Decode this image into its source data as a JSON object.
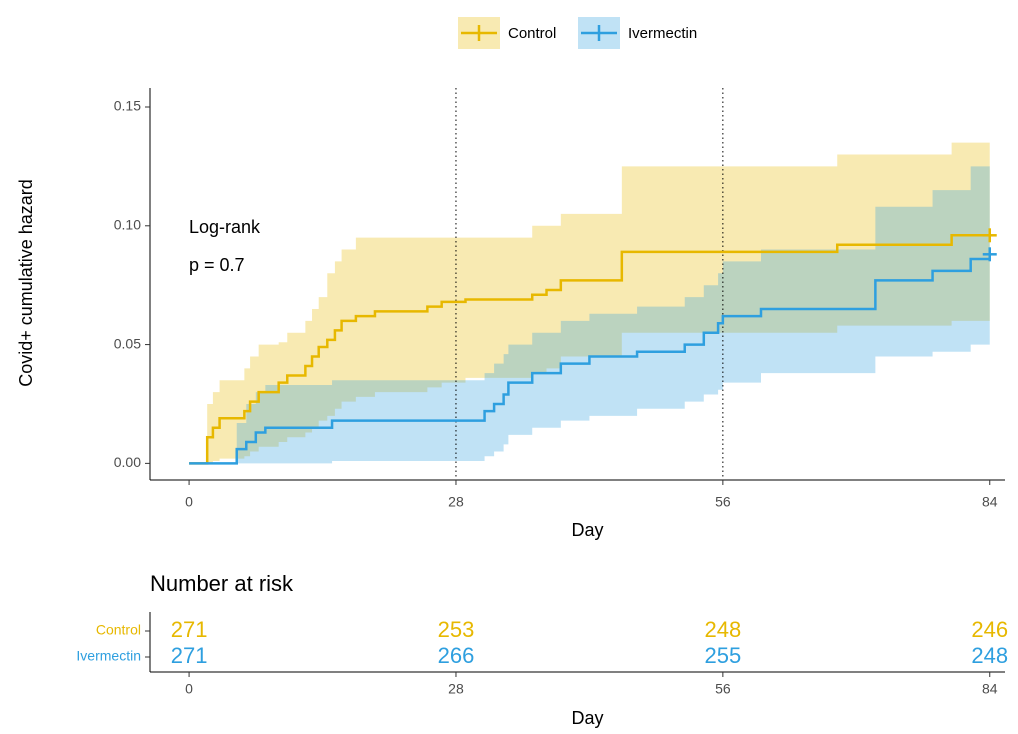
{
  "chart_data": [
    {
      "type": "step",
      "y_label": "Covid+ cumulative hazard",
      "x_label": "Day",
      "xlim": [
        -4.1,
        85.6
      ],
      "ylim": [
        -0.007,
        0.158
      ],
      "xticks": [
        0,
        28,
        56,
        84
      ],
      "yticks": [
        {
          "value": 0,
          "label": "0.00"
        },
        {
          "value": 0.05,
          "label": "0.05"
        },
        {
          "value": 0.1,
          "label": "0.10"
        },
        {
          "value": 0.15,
          "label": "0.15"
        }
      ],
      "vlines": [
        28,
        56
      ],
      "annotations": [
        "Log-rank",
        "p = 0.7"
      ],
      "legend": "top",
      "series": [
        {
          "name": "Control",
          "color": "#E7B800",
          "x": [
            0,
            1.9,
            2.5,
            3.2,
            5.8,
            6.4,
            7.3,
            9.4,
            10.3,
            12.2,
            12.9,
            13.6,
            14.5,
            15.3,
            16,
            17.5,
            19.5,
            25,
            26.5,
            29,
            36,
            37.5,
            39,
            45.4,
            68,
            80,
            84
          ],
          "values": [
            0,
            0.011,
            0.015,
            0.019,
            0.022,
            0.026,
            0.03,
            0.034,
            0.037,
            0.041,
            0.045,
            0.049,
            0.052,
            0.056,
            0.06,
            0.062,
            0.064,
            0.066,
            0.068,
            0.069,
            0.071,
            0.073,
            0.077,
            0.089,
            0.092,
            0.096,
            0.096
          ],
          "upper": [
            0,
            0.025,
            0.03,
            0.035,
            0.04,
            0.045,
            0.05,
            0.051,
            0.055,
            0.06,
            0.065,
            0.07,
            0.08,
            0.085,
            0.09,
            0.095,
            0.095,
            0.095,
            0.095,
            0.095,
            0.1,
            0.1,
            0.105,
            0.125,
            0.13,
            0.135,
            0.135
          ],
          "lower": [
            0,
            0,
            0.001,
            0.002,
            0.003,
            0.005,
            0.007,
            0.009,
            0.011,
            0.013,
            0.015,
            0.018,
            0.02,
            0.023,
            0.026,
            0.028,
            0.03,
            0.032,
            0.034,
            0.036,
            0.038,
            0.04,
            0.045,
            0.055,
            0.058,
            0.06,
            0.06
          ]
        },
        {
          "name": "Ivermectin",
          "color": "#2E9FDF",
          "x": [
            0,
            5,
            6,
            7,
            8,
            15,
            31,
            32,
            33,
            33.5,
            36,
            39,
            42,
            47,
            52,
            54,
            55.5,
            56,
            60,
            72,
            78,
            82,
            84
          ],
          "values": [
            0,
            0.006,
            0.009,
            0.013,
            0.015,
            0.018,
            0.022,
            0.025,
            0.029,
            0.034,
            0.038,
            0.042,
            0.045,
            0.047,
            0.05,
            0.055,
            0.059,
            0.062,
            0.065,
            0.077,
            0.081,
            0.086,
            0.088
          ],
          "upper": [
            0,
            0.017,
            0.025,
            0.03,
            0.033,
            0.035,
            0.038,
            0.042,
            0.046,
            0.05,
            0.055,
            0.06,
            0.063,
            0.066,
            0.07,
            0.075,
            0.08,
            0.085,
            0.09,
            0.108,
            0.115,
            0.125,
            0.125
          ],
          "lower": [
            0,
            0,
            0,
            0,
            0,
            0.001,
            0.003,
            0.005,
            0.008,
            0.012,
            0.015,
            0.018,
            0.02,
            0.023,
            0.026,
            0.029,
            0.031,
            0.034,
            0.038,
            0.045,
            0.047,
            0.05,
            0.053
          ]
        }
      ]
    },
    {
      "type": "risk_table",
      "title": "Number at risk",
      "x_label": "Day",
      "xlim": [
        -4.1,
        85.6
      ],
      "xticks": [
        0,
        28,
        56,
        84
      ],
      "rows": [
        {
          "name": "Control",
          "color": "#E7B800",
          "values": [
            271,
            253,
            248,
            246
          ]
        },
        {
          "name": "Ivermectin",
          "color": "#2E9FDF",
          "values": [
            271,
            266,
            255,
            248
          ]
        }
      ]
    }
  ]
}
